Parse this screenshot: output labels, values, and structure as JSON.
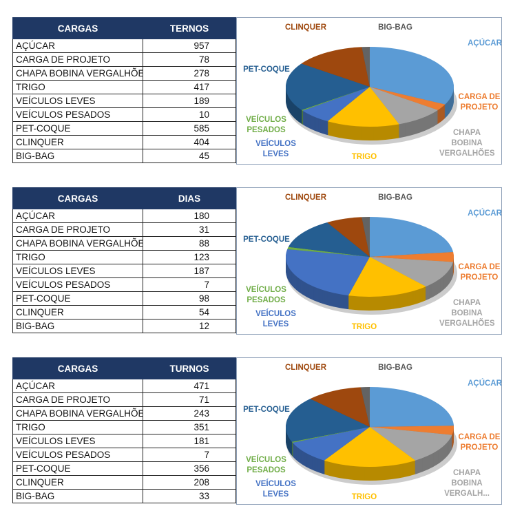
{
  "chart_data": [
    {
      "type": "pie",
      "title": "",
      "header": {
        "col1": "CARGAS",
        "col2": "TERNOS"
      },
      "categories": [
        "AÇÚCAR",
        "CARGA DE PROJETO",
        "CHAPA BOBINA VERGALHÕE",
        "TRIGO",
        "VEÍCULOS LEVES",
        "VEÍCULOS PESADOS",
        "PET-COQUE",
        "CLINQUER",
        "BIG-BAG"
      ],
      "values": [
        957,
        78,
        278,
        417,
        189,
        10,
        585,
        404,
        45
      ],
      "labels": [
        "AÇÚCAR",
        "CARGA DE PROJETO",
        "CHAPA BOBINA VERGALHÕES",
        "TRIGO",
        "VEÍCULOS LEVES",
        "VEÍCULOS PESADOS",
        "PET-COQUE",
        "CLINQUER",
        "BIG-BAG"
      ]
    },
    {
      "type": "pie",
      "title": "",
      "header": {
        "col1": "CARGAS",
        "col2": "DIAS"
      },
      "categories": [
        "AÇÚCAR",
        "CARGA DE PROJETO",
        "CHAPA BOBINA VERGALHÕE",
        "TRIGO",
        "VEÍCULOS LEVES",
        "VEÍCULOS PESADOS",
        "PET-COQUE",
        "CLINQUER",
        "BIG-BAG"
      ],
      "values": [
        180,
        31,
        88,
        123,
        187,
        7,
        98,
        54,
        12
      ],
      "labels": [
        "AÇÚCAR",
        "CARGA DE PROJETO",
        "CHAPA BOBINA VERGALHÕES",
        "TRIGO",
        "VEÍCULOS LEVES",
        "VEÍCULOS PESADOS",
        "PET-COQUE",
        "CLINQUER",
        "BIG-BAG"
      ]
    },
    {
      "type": "pie",
      "title": "",
      "header": {
        "col1": "CARGAS",
        "col2": "TURNOS"
      },
      "categories": [
        "AÇÚCAR",
        "CARGA DE PROJETO",
        "CHAPA BOBINA VERGALHÕE",
        "TRIGO",
        "VEÍCULOS LEVES",
        "VEÍCULOS PESADOS",
        "PET-COQUE",
        "CLINQUER",
        "BIG-BAG"
      ],
      "values": [
        471,
        71,
        243,
        351,
        181,
        7,
        356,
        208,
        33
      ],
      "labels": [
        "AÇÚCAR",
        "CARGA DE PROJETO",
        "CHAPA BOBINA VERGALH...",
        "TRIGO",
        "VEÍCULOS LEVES",
        "VEÍCULOS PESADOS",
        "PET-COQUE",
        "CLINQUER",
        "BIG-BAG"
      ]
    }
  ],
  "colors": [
    "#5B9BD5",
    "#ED7D31",
    "#A5A5A5",
    "#FFC000",
    "#4472C4",
    "#70AD47",
    "#255E91",
    "#9E480E",
    "#636363"
  ]
}
